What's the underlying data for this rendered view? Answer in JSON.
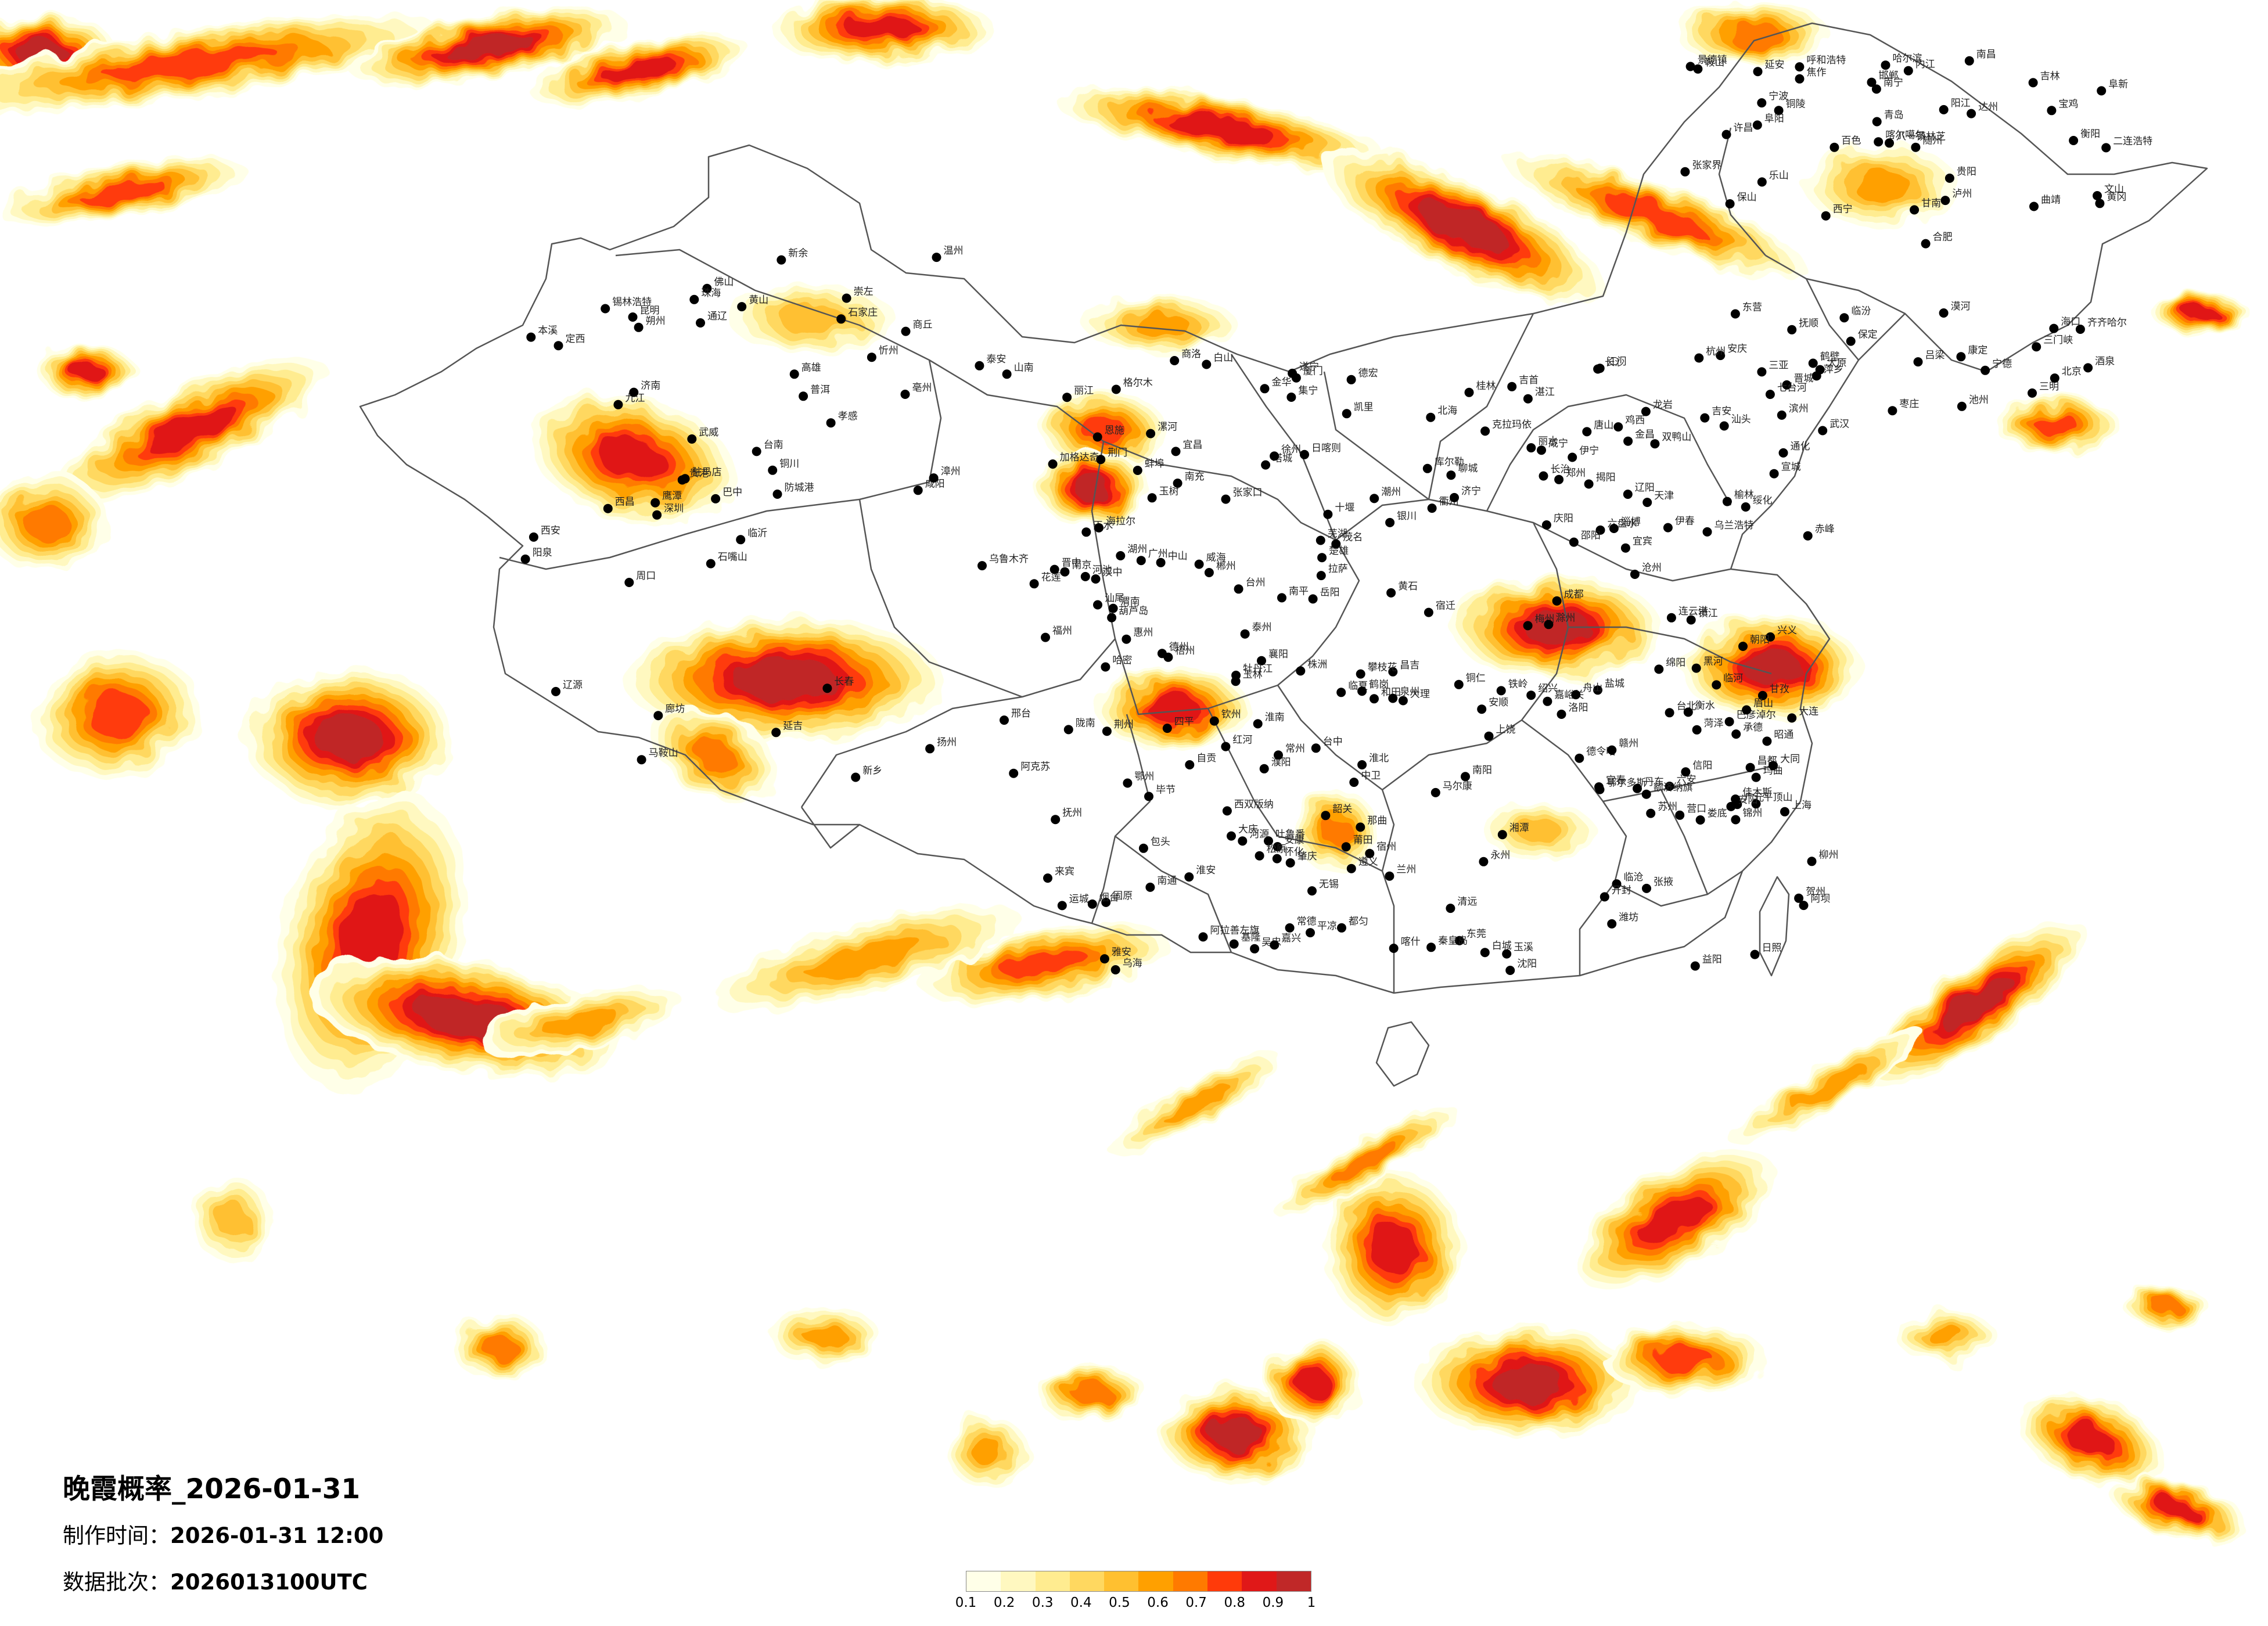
{
  "title": "晚霞概率_2026-01-31",
  "made_label": "制作时间：",
  "made_value": "2026-01-31 12:00",
  "batch_label": "数据批次：",
  "batch_value": "2026013100UTC",
  "legend": {
    "ticks": [
      "0.1",
      "0.2",
      "0.3",
      "0.4",
      "0.5",
      "0.6",
      "0.7",
      "0.8",
      "0.9",
      "1"
    ],
    "colors": [
      "#ffffe8",
      "#fff8c0",
      "#ffec90",
      "#ffd860",
      "#ffc030",
      "#ffa000",
      "#ff7a00",
      "#ff3a0a",
      "#e01818",
      "#c02828"
    ]
  },
  "cities": [
    "克拉玛依",
    "昌吉",
    "乌鲁木齐",
    "吐鲁番",
    "哈密",
    "伊宁",
    "库尔勒",
    "阿克苏",
    "喀什",
    "和田",
    "塔城",
    "喀尔噶尔",
    "日喀则",
    "拉萨",
    "山南",
    "八一镇林芝",
    "那曲",
    "玉树",
    "格尔木",
    "德令哈",
    "西宁",
    "兰州",
    "银川",
    "金昌",
    "张掖",
    "酒泉",
    "嘉峪关",
    "武威",
    "中卫",
    "吴忠",
    "石嘴山",
    "乌海",
    "巴彦淖尔",
    "包头",
    "呼和浩特",
    "鄂尔多斯",
    "榆林",
    "延安",
    "西安",
    "宝鸡",
    "天水",
    "汉中",
    "安康",
    "商洛",
    "渭南",
    "铜川",
    "咸阳",
    "平凉",
    "庆阳",
    "固原",
    "定西",
    "陇南",
    "临夏",
    "甘南",
    "昌都",
    "玛曲",
    "阿坝",
    "马尔康",
    "甘孜",
    "康定",
    "雅安",
    "成都",
    "绵阳",
    "广元",
    "巴中",
    "达州",
    "南充",
    "遂宁",
    "内江",
    "自贡",
    "宜宾",
    "泸州",
    "乐山",
    "眉山",
    "西昌",
    "攀枝花",
    "丽江",
    "大理",
    "保山",
    "德宏",
    "临沧",
    "普洱",
    "西双版纳",
    "红河",
    "文山",
    "曲靖",
    "昆明",
    "玉溪",
    "楚雄",
    "昭通",
    "六盘水",
    "毕节",
    "贵阳",
    "安顺",
    "遵义",
    "铜仁",
    "凯里",
    "都匀",
    "兴义",
    "南宁",
    "百色",
    "河池",
    "柳州",
    "桂林",
    "梧州",
    "玉林",
    "钦州",
    "北海",
    "防城港",
    "崇左",
    "贵港",
    "贺州",
    "来宾",
    "海口",
    "三亚",
    "湛江",
    "茂名",
    "阳江",
    "江门",
    "广州",
    "深圳",
    "东莞",
    "佛山",
    "中山",
    "珠海",
    "肇庆",
    "清远",
    "韶关",
    "河源",
    "梅州",
    "汕头",
    "潮州",
    "揭阳",
    "惠州",
    "汕尾",
    "福州",
    "厦门",
    "泉州",
    "漳州",
    "龙岩",
    "三明",
    "南平",
    "宁德",
    "莆田",
    "台北",
    "台中",
    "台南",
    "高雄",
    "花莲",
    "基隆",
    "赣州",
    "吉安",
    "抚州",
    "南昌",
    "九江",
    "景德镇",
    "上饶",
    "鹰潭",
    "新余",
    "宜春",
    "萍乡",
    "长沙",
    "株洲",
    "湘潭",
    "衡阳",
    "邵阳",
    "岳阳",
    "常德",
    "张家界",
    "益阳",
    "郴州",
    "永州",
    "怀化",
    "娄底",
    "吉首",
    "武汉",
    "黄石",
    "十堰",
    "宜昌",
    "襄阳",
    "鄂州",
    "荆门",
    "孝感",
    "荆州",
    "黄冈",
    "咸宁",
    "随州",
    "恩施",
    "郑州",
    "开封",
    "洛阳",
    "平顶山",
    "安阳",
    "鹤壁",
    "新乡",
    "焦作",
    "濮阳",
    "许昌",
    "漯河",
    "三门峡",
    "南阳",
    "商丘",
    "信阳",
    "周口",
    "驻马店",
    "合肥",
    "芜湖",
    "蚌埠",
    "淮南",
    "马鞍山",
    "淮北",
    "铜陵",
    "安庆",
    "黄山",
    "滁州",
    "阜阳",
    "宿州",
    "六安",
    "亳州",
    "池州",
    "宣城",
    "南京",
    "无锡",
    "徐州",
    "常州",
    "苏州",
    "南通",
    "连云港",
    "淮安",
    "盐城",
    "扬州",
    "镇江",
    "泰州",
    "宿迁",
    "上海",
    "杭州",
    "宁波",
    "温州",
    "嘉兴",
    "湖州",
    "绍兴",
    "金华",
    "衢州",
    "舟山",
    "台州",
    "丽水",
    "济南",
    "青岛",
    "淄博",
    "枣庄",
    "东营",
    "烟台",
    "潍坊",
    "济宁",
    "泰安",
    "威海",
    "日照",
    "临沂",
    "德州",
    "聊城",
    "滨州",
    "菏泽",
    "石家庄",
    "唐山",
    "秦皇岛",
    "邯郸",
    "邢台",
    "保定",
    "张家口",
    "承德",
    "沧州",
    "廊坊",
    "衡水",
    "北京",
    "天津",
    "太原",
    "大同",
    "阳泉",
    "长治",
    "晋城",
    "朔州",
    "晋中",
    "运城",
    "忻州",
    "临汾",
    "吕梁",
    "沈阳",
    "大连",
    "鞍山",
    "抚顺",
    "本溪",
    "丹东",
    "锦州",
    "营口",
    "阜新",
    "辽阳",
    "铁岭",
    "朝阳",
    "葫芦岛",
    "长春",
    "吉林",
    "四平",
    "辽源",
    "通化",
    "白山",
    "松原",
    "白城",
    "延吉",
    "哈尔滨",
    "齐齐哈尔",
    "牡丹江",
    "佳木斯",
    "大庆",
    "鸡西",
    "双鸭山",
    "伊春",
    "七台河",
    "鹤岗",
    "黑河",
    "绥化",
    "加格达奇",
    "漠河",
    "海拉尔",
    "乌兰浩特",
    "通辽",
    "赤峰",
    "锡林浩特",
    "集宁",
    "临河",
    "阿拉善左旗",
    "额济纳旗",
    "二连浩特"
  ]
}
